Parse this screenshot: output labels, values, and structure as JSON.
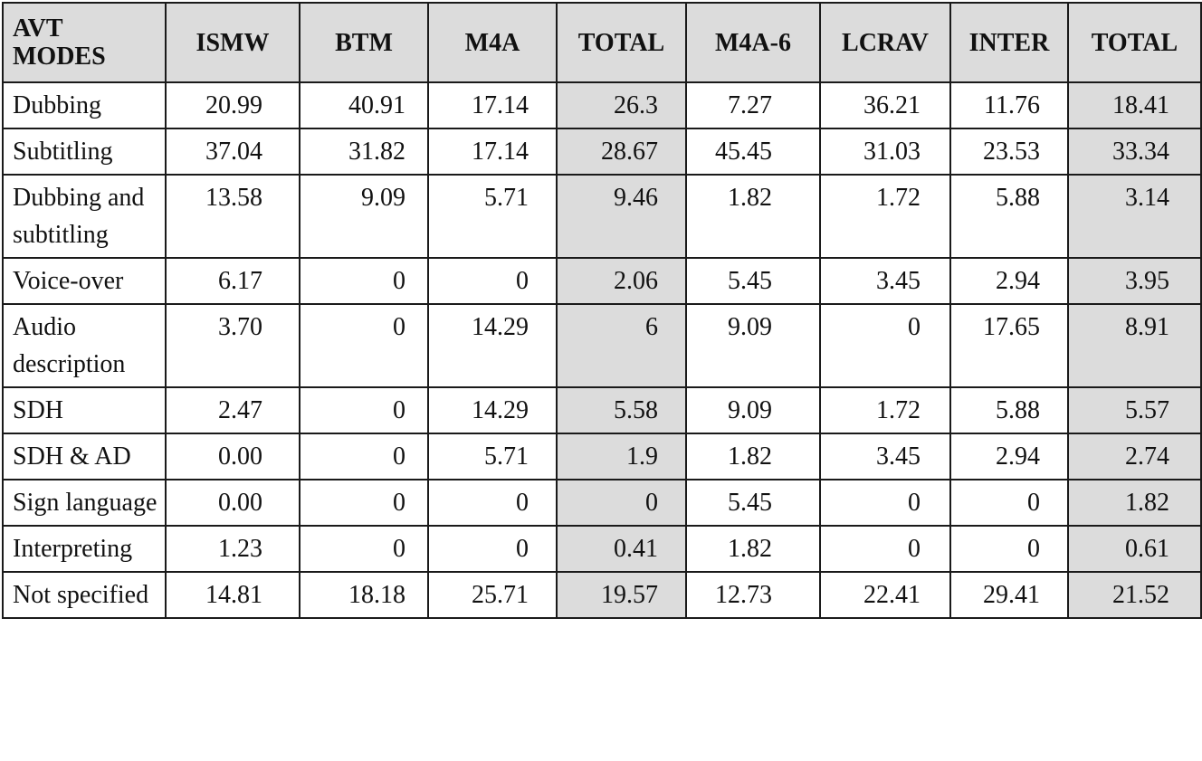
{
  "table": {
    "header_label_line1": "AVT",
    "header_label_line2": "MODES",
    "columns": [
      "ISMW",
      "BTM",
      "M4A",
      "TOTAL",
      "M4A-6",
      "LCRAV",
      "INTER",
      "TOTAL"
    ],
    "rows": [
      {
        "label": "Dubbing",
        "values": [
          "20.99",
          "40.91",
          "17.14",
          "26.3",
          "7.27",
          "36.21",
          "11.76",
          "18.41"
        ]
      },
      {
        "label": "Subtitling",
        "values": [
          "37.04",
          "31.82",
          "17.14",
          "28.67",
          "45.45",
          "31.03",
          "23.53",
          "33.34"
        ]
      },
      {
        "label": "Dubbing and subtitling",
        "values": [
          "13.58",
          "9.09",
          "5.71",
          "9.46",
          "1.82",
          "1.72",
          "5.88",
          "3.14"
        ]
      },
      {
        "label": "Voice-over",
        "values": [
          "6.17",
          "0",
          "0",
          "2.06",
          "5.45",
          "3.45",
          "2.94",
          "3.95"
        ]
      },
      {
        "label": "Audio description",
        "values": [
          "3.70",
          "0",
          "14.29",
          "6",
          "9.09",
          "0",
          "17.65",
          "8.91"
        ]
      },
      {
        "label": "SDH",
        "values": [
          "2.47",
          "0",
          "14.29",
          "5.58",
          "9.09",
          "1.72",
          "5.88",
          "5.57"
        ]
      },
      {
        "label": "SDH & AD",
        "values": [
          "0.00",
          "0",
          "5.71",
          "1.9",
          "1.82",
          "3.45",
          "2.94",
          "2.74"
        ]
      },
      {
        "label": "Sign language",
        "values": [
          "0.00",
          "0",
          "0",
          "0",
          "5.45",
          "0",
          "0",
          "1.82"
        ]
      },
      {
        "label": "Interpreting",
        "values": [
          "1.23",
          "0",
          "0",
          "0.41",
          "1.82",
          "0",
          "0",
          "0.61"
        ]
      },
      {
        "label": "Not specified",
        "values": [
          "14.81",
          "18.18",
          "25.71",
          "19.57",
          "12.73",
          "22.41",
          "29.41",
          "21.52"
        ]
      }
    ]
  }
}
